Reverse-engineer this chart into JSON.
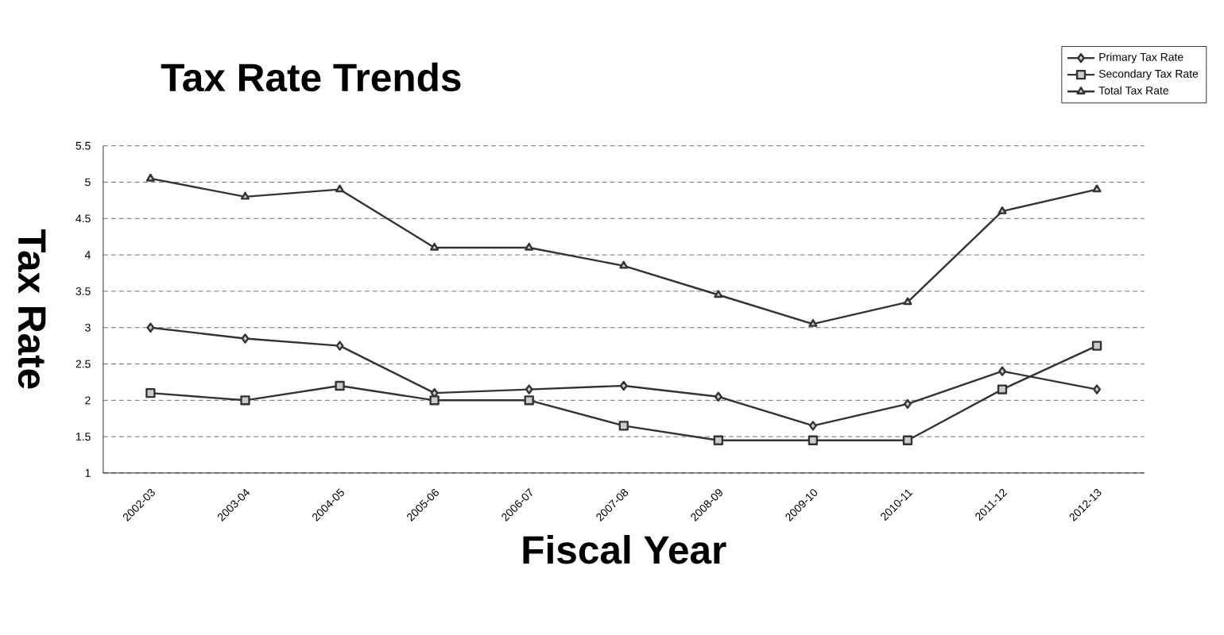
{
  "chart_data": {
    "type": "line",
    "title": "Tax Rate Trends",
    "xlabel": "Fiscal Year",
    "ylabel": "Tax Rate",
    "categories": [
      "2002-03",
      "2003-04",
      "2004-05",
      "2005-06",
      "2006-07",
      "2007-08",
      "2008-09",
      "2009-10",
      "2010-11",
      "2011-12",
      "2012-13"
    ],
    "series": [
      {
        "name": "Primary Tax Rate",
        "color": "#333333",
        "marker": "diamond",
        "values": [
          3.0,
          2.85,
          2.75,
          2.1,
          2.15,
          2.2,
          2.05,
          1.65,
          1.95,
          2.4,
          2.15
        ]
      },
      {
        "name": "Secondary Tax Rate",
        "color": "#333333",
        "marker": "square",
        "values": [
          2.1,
          2.0,
          2.2,
          2.0,
          2.0,
          1.65,
          1.45,
          1.45,
          1.45,
          2.15,
          2.75
        ]
      },
      {
        "name": "Total Tax Rate",
        "color": "#333333",
        "marker": "triangle",
        "values": [
          5.05,
          4.8,
          4.9,
          4.1,
          4.1,
          3.85,
          3.45,
          3.05,
          3.35,
          4.6,
          4.9
        ]
      }
    ],
    "ylim": [
      1,
      5.5
    ],
    "yticks": [
      1,
      1.5,
      2,
      2.5,
      3,
      3.5,
      4,
      4.5,
      5,
      5.5
    ],
    "grid": "y",
    "legend": "top right",
    "line_style": "solid"
  }
}
